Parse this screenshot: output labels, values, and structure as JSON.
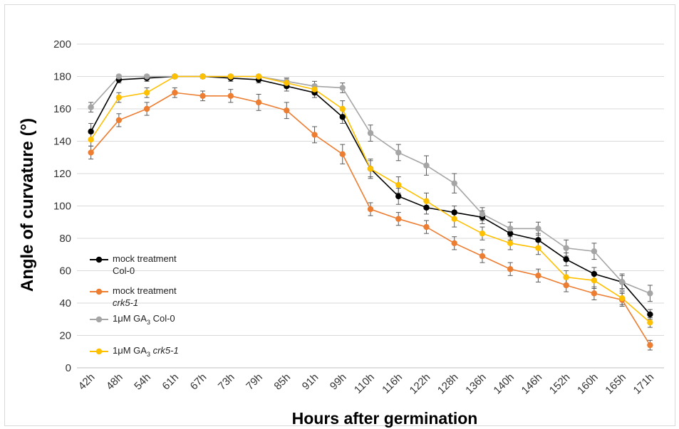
{
  "chart_data": {
    "type": "line",
    "xlabel": "Hours after germination",
    "ylabel": "Angle of curvature (°)",
    "categories": [
      "42h",
      "48h",
      "54h",
      "61h",
      "67h",
      "73h",
      "79h",
      "85h",
      "91h",
      "99h",
      "110h",
      "116h",
      "122h",
      "128h",
      "136h",
      "140h",
      "146h",
      "152h",
      "160h",
      "165h",
      "171h"
    ],
    "ylim": [
      0,
      200
    ],
    "yticks": [
      0,
      20,
      40,
      60,
      80,
      100,
      120,
      140,
      160,
      180,
      200
    ],
    "grid": "horizontal",
    "legend_position": "left",
    "series": [
      {
        "name": "mock treatment Col-0",
        "legend_line1": "mock treatment",
        "legend_line2": "Col-0",
        "color": "#000000",
        "values": [
          146,
          178,
          179,
          180,
          180,
          179,
          178,
          174,
          170,
          155,
          123,
          106,
          99,
          96,
          93,
          83,
          79,
          67,
          58,
          53,
          33
        ],
        "errors": [
          5,
          2,
          2,
          1,
          1,
          2,
          2,
          3,
          3,
          4,
          6,
          5,
          4,
          4,
          4,
          4,
          4,
          4,
          4,
          4,
          3
        ]
      },
      {
        "name": "mock treatment crk5-1",
        "legend_line1": "mock treatment",
        "legend_line2": "crk5-1",
        "color": "#ed7d31",
        "values": [
          133,
          153,
          160,
          170,
          168,
          168,
          164,
          159,
          144,
          132,
          98,
          92,
          87,
          77,
          69,
          61,
          57,
          51,
          46,
          42,
          14
        ],
        "errors": [
          4,
          4,
          4,
          3,
          3,
          4,
          5,
          5,
          5,
          6,
          4,
          4,
          4,
          4,
          4,
          4,
          4,
          4,
          4,
          4,
          3
        ]
      },
      {
        "name": "1μM GA3 Col-0",
        "legend_line1": "1μM GA",
        "legend_sub": "3",
        "legend_line1_suffix": " Col-0",
        "color": "#a5a5a5",
        "values": [
          161,
          180,
          180,
          180,
          180,
          180,
          180,
          177,
          174,
          173,
          145,
          133,
          125,
          114,
          95,
          86,
          86,
          74,
          72,
          53,
          46
        ],
        "errors": [
          3,
          1,
          1,
          1,
          1,
          1,
          1,
          2,
          3,
          3,
          5,
          5,
          6,
          6,
          4,
          4,
          4,
          5,
          5,
          5,
          5
        ]
      },
      {
        "name": "1μM GA3 crk5-1",
        "legend_line1": "1μM GA",
        "legend_sub": "3",
        "legend_line1_suffix": " crk5-1",
        "color": "#ffc000",
        "values": [
          141,
          167,
          170,
          180,
          180,
          180,
          180,
          176,
          172,
          160,
          123,
          113,
          103,
          92,
          83,
          77,
          74,
          56,
          54,
          43,
          28
        ],
        "errors": [
          4,
          3,
          3,
          1,
          1,
          1,
          1,
          3,
          3,
          5,
          5,
          5,
          5,
          5,
          4,
          4,
          4,
          4,
          5,
          4,
          3
        ]
      }
    ]
  }
}
